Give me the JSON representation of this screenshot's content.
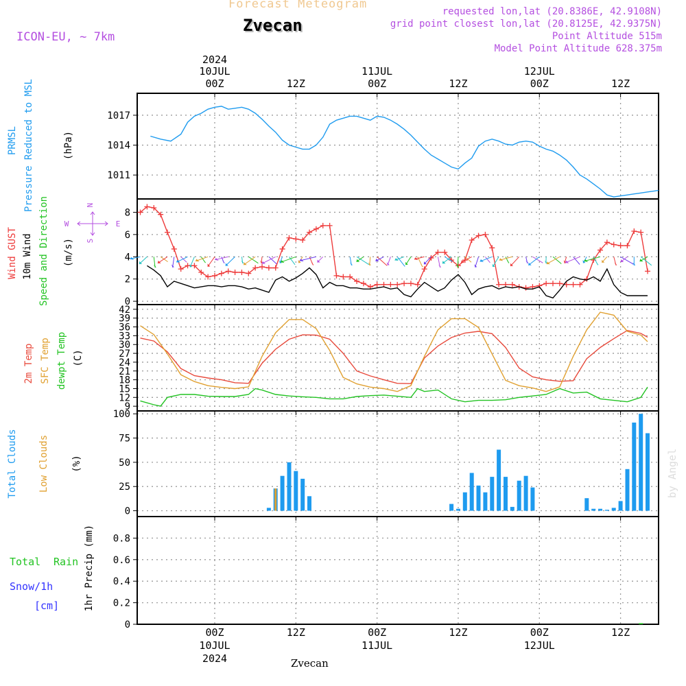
{
  "header": {
    "subtitle": "Forecast Meteogram",
    "location": "Zvecan",
    "model": "ICON-EU, ~ 7km",
    "requested": "requested lon,lat (20.8386E, 42.9108N)",
    "grid_point": "grid point closest lon,lat (20.8125E, 42.9375N)",
    "point_altitude": "Point Altitude 515m",
    "model_altitude": "Model Point Altitude 628.375m",
    "footer": "Zvecan",
    "watermark": "by Angel"
  },
  "colors": {
    "pressure": "#1e9bef",
    "gust": "#ee3b3b",
    "wind": "#000000",
    "t2m": "#e84a3c",
    "sfc": "#e0a030",
    "dewpt": "#22c322",
    "total_clouds": "#1e9bef",
    "low_clouds": "#e0a030",
    "rain": "#22c322",
    "snow": "#3333ff",
    "header_purple": "#b44fe0",
    "subtitle": "#f0c890",
    "grid": "#999999"
  },
  "time_axis": {
    "top_date_labels": [
      {
        "t": 0,
        "date": "10JUL",
        "year": "2024",
        "hour": "00Z"
      },
      {
        "t": 12,
        "date": "",
        "year": "",
        "hour": "12Z"
      },
      {
        "t": 24,
        "date": "11JUL",
        "year": "",
        "hour": "00Z"
      },
      {
        "t": 36,
        "date": "",
        "year": "",
        "hour": "12Z"
      },
      {
        "t": 48,
        "date": "12JUL",
        "year": "",
        "hour": "00Z"
      },
      {
        "t": 60,
        "date": "",
        "year": "",
        "hour": "12Z"
      }
    ],
    "bottom_date_labels": [
      {
        "t": 0,
        "date": "10JUL",
        "year": "2024",
        "hour": "00Z"
      },
      {
        "t": 12,
        "date": "",
        "year": "",
        "hour": "12Z"
      },
      {
        "t": 24,
        "date": "11JUL",
        "year": "",
        "hour": "00Z"
      },
      {
        "t": 36,
        "date": "",
        "year": "",
        "hour": "12Z"
      },
      {
        "t": 48,
        "date": "12JUL",
        "year": "",
        "hour": "00Z"
      },
      {
        "t": 60,
        "date": "",
        "year": "",
        "hour": "12Z"
      }
    ]
  },
  "panel_labels": {
    "pressure": [
      {
        "text": "PRMSL",
        "color": "#1e9bef"
      },
      {
        "text": "Pressure Reduced to MSL",
        "color": "#1e9bef"
      },
      {
        "text": "(hPa)",
        "color": "#000000"
      }
    ],
    "wind": [
      {
        "text": "Wind GUST",
        "color": "#ee3b3b"
      },
      {
        "text": "10m Wind",
        "color": "#000000"
      },
      {
        "text": "Speed and Direction",
        "color": "#22c322"
      },
      {
        "text": "(m/s)",
        "color": "#000000"
      }
    ],
    "compass": {
      "n": "N",
      "s": "S",
      "w": "W",
      "e": "E"
    },
    "temp": [
      {
        "text": "2m Temp",
        "color": "#e84a3c"
      },
      {
        "text": "SFC Temp",
        "color": "#e0a030"
      },
      {
        "text": "dewpt Temp",
        "color": "#22c322"
      },
      {
        "text": "(C)",
        "color": "#000000"
      }
    ],
    "clouds": [
      {
        "text": "Total Clouds",
        "color": "#1e9bef"
      },
      {
        "text": "Low Clouds",
        "color": "#e0a030"
      },
      {
        "text": "(%)",
        "color": "#000000"
      }
    ],
    "precip": [
      {
        "text": "Total",
        "color": "#22c322"
      },
      {
        "text": "Rain",
        "color": "#22c322"
      },
      {
        "text": "Snow/1h",
        "color": "#3333ff"
      },
      {
        "text": "[cm]",
        "color": "#3333ff"
      },
      {
        "text": "1hr Precip (mm)",
        "color": "#000000"
      }
    ]
  },
  "chart_data": [
    {
      "type": "line",
      "id": "pressure",
      "ylabel": "(hPa)",
      "ylim": [
        1008.6,
        1019.2
      ],
      "yticks": [
        1011,
        1014,
        1017
      ],
      "grid": true,
      "series": [
        {
          "name": "PRMSL",
          "x": [
            -9.5,
            -8,
            -6.5,
            -5,
            -4,
            -3,
            -2,
            -1,
            0,
            1,
            2,
            3,
            4,
            5,
            6,
            7,
            8,
            9,
            10,
            11,
            12,
            13,
            14,
            15,
            16,
            17,
            18,
            19,
            20,
            21,
            22,
            23,
            24,
            25,
            26,
            27,
            28,
            29,
            30,
            31,
            32,
            33,
            34,
            35,
            36,
            37,
            38,
            39,
            40,
            41,
            42,
            43,
            44,
            45,
            46,
            47,
            48,
            49,
            50,
            51,
            52,
            53,
            54,
            55,
            56,
            57,
            58,
            59,
            60,
            61,
            62,
            63,
            64,
            65,
            66
          ],
          "y": [
            1014.9,
            1014.6,
            1014.4,
            1015.1,
            1016.3,
            1016.9,
            1017.2,
            1017.6,
            1017.8,
            1017.9,
            1017.6,
            1017.7,
            1017.8,
            1017.6,
            1017.2,
            1016.6,
            1015.9,
            1015.3,
            1014.5,
            1014.0,
            1013.8,
            1013.6,
            1013.6,
            1014.0,
            1014.8,
            1016.1,
            1016.5,
            1016.7,
            1016.9,
            1016.9,
            1016.7,
            1016.5,
            1016.9,
            1016.8,
            1016.5,
            1016.1,
            1015.6,
            1015.0,
            1014.3,
            1013.6,
            1013.0,
            1012.6,
            1012.2,
            1011.8,
            1011.6,
            1012.2,
            1012.7,
            1013.9,
            1014.4,
            1014.6,
            1014.4,
            1014.1,
            1014.0,
            1014.3,
            1014.4,
            1014.3,
            1013.9,
            1013.6,
            1013.4,
            1013.0,
            1012.5,
            1011.8,
            1011.0,
            1010.6,
            1010.1,
            1009.6,
            1009.0,
            1008.8,
            1008.9,
            1009.0,
            1009.1,
            1009.2,
            1009.3,
            1009.4,
            1009.5
          ]
        }
      ]
    },
    {
      "type": "line",
      "id": "wind",
      "ylabel": "(m/s)",
      "ylim": [
        -0.3,
        9.2
      ],
      "yticks": [
        0,
        2,
        4,
        6,
        8
      ],
      "grid": true,
      "series": [
        {
          "name": "Wind GUST",
          "x": [
            -11,
            -10,
            -9,
            -8,
            -7,
            -6,
            -5,
            -4,
            -3,
            -2,
            -1,
            0,
            1,
            2,
            3,
            4,
            5,
            6,
            7,
            8,
            9,
            10,
            11,
            12,
            13,
            14,
            15,
            16,
            17,
            18,
            19,
            20,
            21,
            22,
            23,
            24,
            25,
            26,
            27,
            28,
            29,
            30,
            31,
            32,
            33,
            34,
            35,
            36,
            37,
            38,
            39,
            40,
            41,
            42,
            43,
            44,
            45,
            46,
            47,
            48,
            49,
            50,
            51,
            52,
            53,
            54,
            55,
            56,
            57,
            58,
            59,
            60,
            61,
            62,
            63,
            64
          ],
          "y": [
            8.0,
            8.5,
            8.4,
            7.8,
            6.2,
            4.7,
            2.9,
            3.2,
            3.2,
            2.6,
            2.2,
            2.3,
            2.5,
            2.7,
            2.6,
            2.6,
            2.5,
            3.0,
            3.1,
            3.0,
            3.0,
            4.7,
            5.7,
            5.6,
            5.5,
            6.2,
            6.5,
            6.8,
            6.8,
            2.3,
            2.2,
            2.2,
            1.8,
            1.6,
            1.3,
            1.5,
            1.5,
            1.5,
            1.5,
            1.6,
            1.6,
            1.5,
            2.9,
            3.9,
            4.4,
            4.4,
            3.7,
            3.2,
            3.7,
            5.5,
            5.9,
            6.0,
            4.8,
            1.5,
            1.5,
            1.5,
            1.3,
            1.2,
            1.3,
            1.4,
            1.6,
            1.6,
            1.6,
            1.5,
            1.5,
            1.5,
            2.0,
            3.7,
            4.6,
            5.3,
            5.1,
            5.0,
            5.0,
            6.3,
            6.2,
            2.7
          ]
        },
        {
          "name": "10m Wind",
          "x": [
            -10,
            -9,
            -8,
            -7,
            -6,
            -5,
            -4,
            -3,
            -2,
            -1,
            0,
            1,
            2,
            3,
            4,
            5,
            6,
            7,
            8,
            9,
            10,
            11,
            12,
            13,
            14,
            15,
            16,
            17,
            18,
            19,
            20,
            21,
            22,
            23,
            24,
            25,
            26,
            27,
            28,
            29,
            30,
            31,
            32,
            33,
            34,
            35,
            36,
            37,
            38,
            39,
            40,
            41,
            42,
            43,
            44,
            45,
            46,
            47,
            48,
            49,
            50,
            51,
            52,
            53,
            54,
            55,
            56,
            57,
            58,
            59,
            60,
            61,
            62,
            63,
            64
          ],
          "y": [
            3.2,
            2.8,
            2.3,
            1.3,
            1.8,
            1.6,
            1.4,
            1.2,
            1.3,
            1.4,
            1.4,
            1.3,
            1.4,
            1.4,
            1.3,
            1.1,
            1.2,
            1.0,
            0.8,
            1.9,
            2.2,
            1.8,
            2.1,
            2.5,
            3.0,
            2.4,
            1.2,
            1.7,
            1.4,
            1.4,
            1.2,
            1.2,
            1.1,
            1.1,
            1.2,
            1.3,
            1.1,
            1.2,
            0.6,
            0.4,
            1.1,
            1.7,
            1.3,
            0.9,
            1.2,
            1.9,
            2.4,
            1.7,
            0.6,
            1.1,
            1.3,
            1.4,
            1.1,
            1.3,
            1.2,
            1.3,
            1.1,
            1.1,
            1.3,
            0.5,
            0.3,
            1.0,
            1.8,
            2.2,
            2.0,
            1.9,
            2.2,
            1.8,
            2.9,
            1.5,
            0.8,
            0.5,
            0.5,
            0.5,
            0.5
          ]
        }
      ]
    },
    {
      "type": "line",
      "id": "temp",
      "ylabel": "(C)",
      "ylim": [
        7.4,
        43.6
      ],
      "yticks": [
        9,
        12,
        15,
        18,
        21,
        24,
        27,
        30,
        33,
        36,
        39,
        42
      ],
      "grid": true,
      "series": [
        {
          "name": "2m Temp",
          "x": [
            -11,
            -9,
            -7,
            -5,
            -3,
            -1,
            1,
            3,
            5,
            7,
            9,
            11,
            13,
            15,
            17,
            19,
            21,
            23,
            25,
            27,
            29,
            31,
            33,
            35,
            37,
            39,
            41,
            43,
            45,
            47,
            49,
            51,
            53,
            55,
            57,
            59,
            61,
            63,
            64
          ],
          "y": [
            32.2,
            31.2,
            27.5,
            21.8,
            19.4,
            18.6,
            18.0,
            17.0,
            16.8,
            23.6,
            28.4,
            31.8,
            33.3,
            33.2,
            31.8,
            27.0,
            21.0,
            19.3,
            18.0,
            16.8,
            16.7,
            25.4,
            29.5,
            32.4,
            33.9,
            34.5,
            33.7,
            29.0,
            22.0,
            19.0,
            18.0,
            17.5,
            17.7,
            25.2,
            29.0,
            32.0,
            34.8,
            33.8,
            32.5
          ]
        },
        {
          "name": "SFC Temp",
          "x": [
            -11,
            -9,
            -7,
            -5,
            -3,
            -1,
            1,
            3,
            5,
            7,
            9,
            11,
            13,
            15,
            17,
            19,
            21,
            23,
            25,
            27,
            29,
            31,
            33,
            35,
            37,
            39,
            41,
            43,
            45,
            47,
            49,
            51,
            53,
            55,
            57,
            59,
            61,
            63,
            64
          ],
          "y": [
            36.4,
            33.4,
            26.8,
            19.7,
            17.4,
            16.0,
            15.4,
            15.0,
            15.6,
            26.0,
            34.0,
            38.5,
            38.5,
            35.4,
            28.0,
            18.8,
            16.6,
            15.5,
            15.0,
            14.0,
            16.0,
            26.0,
            35.0,
            38.8,
            38.8,
            35.8,
            26.8,
            17.8,
            16.0,
            15.2,
            14.0,
            15.6,
            26.0,
            35.0,
            41.0,
            40.0,
            34.5,
            33.2,
            31.0
          ]
        },
        {
          "name": "dewpt Temp",
          "x": [
            -11,
            -9,
            -8,
            -7,
            -5,
            -3,
            -1,
            1,
            3,
            5,
            6,
            7,
            9,
            11,
            13,
            15,
            17,
            19,
            21,
            23,
            25,
            27,
            29,
            30,
            31,
            33,
            35,
            37,
            39,
            41,
            43,
            45,
            47,
            49,
            51,
            53,
            55,
            57,
            59,
            61,
            63,
            64
          ],
          "y": [
            10.8,
            9.5,
            9.0,
            12.0,
            13.0,
            13.0,
            12.4,
            12.3,
            12.3,
            13.0,
            15.0,
            14.5,
            13.0,
            12.5,
            12.2,
            12.0,
            11.5,
            11.5,
            12.3,
            12.6,
            12.8,
            12.4,
            12.0,
            15.0,
            14.0,
            14.5,
            11.5,
            10.5,
            11.0,
            11.0,
            11.2,
            12.0,
            12.5,
            13.0,
            15.0,
            13.5,
            13.8,
            11.5,
            11.0,
            10.5,
            12.0,
            15.5
          ]
        }
      ]
    },
    {
      "type": "bar",
      "id": "clouds",
      "ylabel": "(%)",
      "ylim": [
        -6,
        103
      ],
      "yticks": [
        0,
        25,
        50,
        75,
        100
      ],
      "grid": true,
      "series": [
        {
          "name": "Total Clouds",
          "x": [
            8,
            9,
            10,
            11,
            12,
            13,
            14,
            35,
            36,
            37,
            38,
            39,
            40,
            41,
            42,
            43,
            44,
            45,
            46,
            47,
            55,
            56,
            57,
            58,
            59,
            60,
            61,
            62,
            63,
            64
          ],
          "values": [
            3,
            23,
            36,
            50,
            41,
            33,
            15,
            7,
            2,
            19,
            39,
            26,
            19,
            35,
            63,
            35,
            4,
            31,
            36,
            24,
            13,
            2,
            2,
            1,
            3,
            10,
            43,
            91,
            100,
            80
          ]
        },
        {
          "name": "Low Clouds",
          "x": [
            9
          ],
          "values": [
            23
          ]
        }
      ]
    },
    {
      "type": "bar",
      "id": "precip",
      "ylabel": "1hr Precip (mm)",
      "ylim": [
        0,
        1.0
      ],
      "yticks": [
        0,
        0.2,
        0.4,
        0.6,
        0.8
      ],
      "grid": true,
      "series": [
        {
          "name": "Total Rain",
          "x": [
            63
          ],
          "values": [
            0.01
          ]
        }
      ]
    }
  ]
}
